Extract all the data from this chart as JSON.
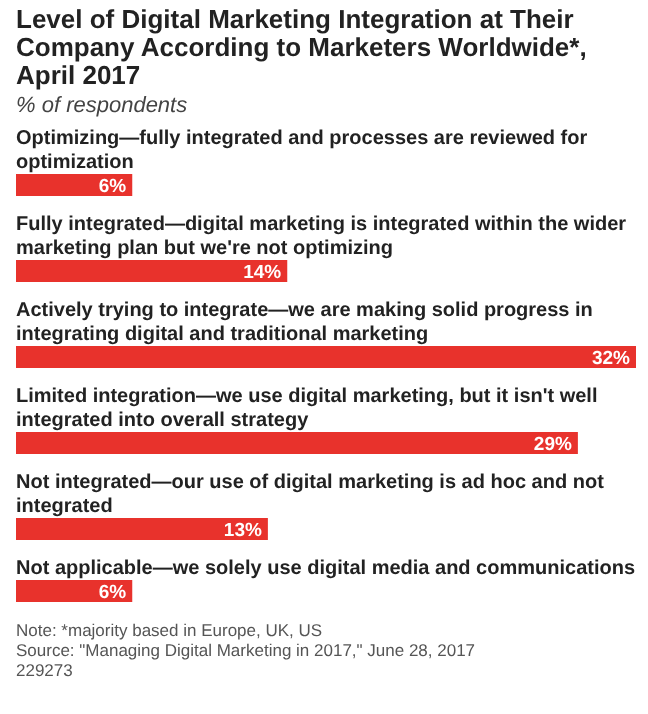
{
  "chart_data": {
    "type": "bar",
    "orientation": "horizontal",
    "title": "Level of Digital Marketing Integration at Their Company According to Marketers Worldwide*, April 2017",
    "subtitle": "% of respondents",
    "categories": [
      "Optimizing—fully integrated and processes are reviewed for optimization",
      "Fully integrated—digital marketing is integrated within the wider marketing plan but we're not optimizing",
      "Actively trying to integrate—we are making solid progress in integrating digital and traditional marketing",
      "Limited integration—we use digital marketing, but it isn't well integrated into overall strategy",
      "Not integrated—our use of digital marketing is ad hoc and not integrated",
      "Not applicable—we solely use digital media and communications"
    ],
    "values": [
      6,
      14,
      32,
      29,
      13,
      6
    ],
    "value_labels": [
      "6%",
      "14%",
      "32%",
      "29%",
      "13%",
      "6%"
    ],
    "color": "#e8322c",
    "annotations": [
      "Note: *majority based in Europe, UK, US",
      "Source: \"Managing Digital Marketing in 2017,\" June 28, 2017",
      "229273"
    ]
  }
}
